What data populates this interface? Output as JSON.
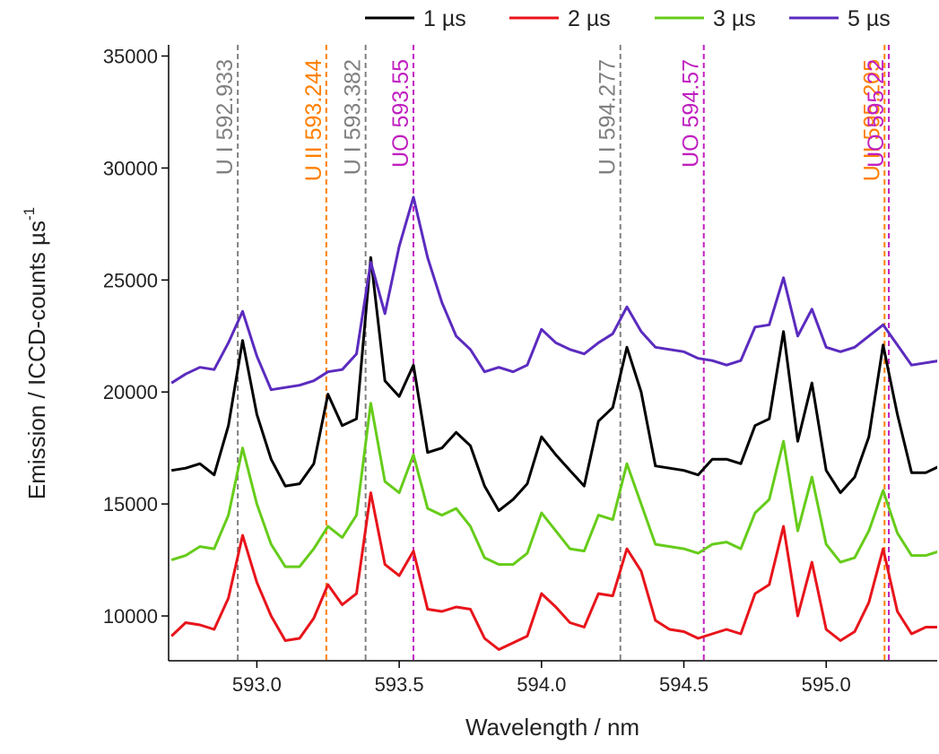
{
  "chart_data": {
    "type": "line",
    "xlabel": "Wavelength / nm",
    "ylabel": {
      "text": "Emission / ICCD-counts µs",
      "superscript": "-1"
    },
    "xlim": [
      592.69,
      595.39
    ],
    "ylim": [
      8000,
      35500
    ],
    "xticks": [
      {
        "value": 593,
        "label": "593.0"
      },
      {
        "value": 593.5,
        "label": "593.5"
      },
      {
        "value": 594,
        "label": "594.0"
      },
      {
        "value": 594.5,
        "label": "594.5"
      },
      {
        "value": 595,
        "label": "595.0"
      }
    ],
    "yticks": [
      10000,
      15000,
      20000,
      25000,
      30000,
      35000
    ],
    "x": [
      592.7,
      592.75,
      592.8,
      592.85,
      592.9,
      592.95,
      593.0,
      593.05,
      593.1,
      593.15,
      593.2,
      593.25,
      593.3,
      593.35,
      593.4,
      593.45,
      593.5,
      593.55,
      593.6,
      593.65,
      593.7,
      593.75,
      593.8,
      593.85,
      593.9,
      593.95,
      594.0,
      594.05,
      594.1,
      594.15,
      594.2,
      594.25,
      594.3,
      594.35,
      594.4,
      594.45,
      594.5,
      594.55,
      594.6,
      594.65,
      594.7,
      594.75,
      594.8,
      594.85,
      594.9,
      594.95,
      595.0,
      595.05,
      595.1,
      595.15,
      595.2,
      595.25,
      595.3,
      595.35,
      595.4
    ],
    "series": [
      {
        "name": "1 µs",
        "color": "#000000",
        "values": [
          16500,
          16600,
          16800,
          16300,
          18500,
          22300,
          19000,
          17000,
          15800,
          15900,
          16800,
          19900,
          18500,
          18800,
          26000,
          20500,
          19800,
          21200,
          17300,
          17500,
          18200,
          17600,
          15800,
          14700,
          15200,
          15900,
          18000,
          17200,
          16500,
          15800,
          18700,
          19300,
          22000,
          20000,
          16700,
          16600,
          16500,
          16300,
          17000,
          17000,
          16800,
          18500,
          18800,
          22700,
          17800,
          20400,
          16500,
          15500,
          16200,
          18000,
          22100,
          19000,
          16400,
          16400,
          16700
        ]
      },
      {
        "name": "2 µs",
        "color": "#e8141b",
        "values": [
          9100,
          9700,
          9600,
          9400,
          10800,
          13600,
          11500,
          10000,
          8900,
          9000,
          9900,
          11400,
          10500,
          11000,
          15500,
          12300,
          11800,
          12900,
          10300,
          10200,
          10400,
          10300,
          9000,
          8500,
          8800,
          9100,
          11000,
          10400,
          9700,
          9500,
          11000,
          10900,
          13000,
          12000,
          9800,
          9400,
          9300,
          9000,
          9200,
          9400,
          9200,
          11000,
          11400,
          14000,
          10000,
          12400,
          9400,
          8900,
          9300,
          10600,
          13000,
          10200,
          9200,
          9500,
          9500
        ]
      },
      {
        "name": "3 µs",
        "color": "#66cc1a",
        "values": [
          12500,
          12700,
          13100,
          13000,
          14500,
          17500,
          15000,
          13200,
          12200,
          12200,
          13000,
          14000,
          13500,
          14500,
          19500,
          16000,
          15500,
          17200,
          14800,
          14500,
          14800,
          14000,
          12600,
          12300,
          12300,
          12800,
          14600,
          13800,
          13000,
          12900,
          14500,
          14300,
          16800,
          15000,
          13200,
          13100,
          13000,
          12800,
          13200,
          13300,
          13000,
          14600,
          15200,
          17800,
          13800,
          16200,
          13200,
          12400,
          12600,
          13800,
          15600,
          13700,
          12700,
          12700,
          12900
        ]
      },
      {
        "name": "5 µs",
        "color": "#5b2bbf",
        "values": [
          20400,
          20800,
          21100,
          21000,
          22200,
          23600,
          21600,
          20100,
          20200,
          20300,
          20500,
          20900,
          21000,
          21700,
          25800,
          23500,
          26500,
          28700,
          26000,
          24000,
          22500,
          21900,
          20900,
          21100,
          20900,
          21200,
          22800,
          22200,
          21900,
          21700,
          22200,
          22600,
          23800,
          22700,
          22000,
          21900,
          21800,
          21500,
          21400,
          21200,
          21400,
          22900,
          23000,
          25100,
          22500,
          23700,
          22000,
          21800,
          22000,
          22500,
          23000,
          22100,
          21200,
          21300,
          21400
        ]
      }
    ],
    "annotations": [
      {
        "label": "U I 592.933",
        "x": 592.933,
        "color": "#808080"
      },
      {
        "label": "U II 593.244",
        "x": 593.244,
        "color": "#ff8000"
      },
      {
        "label": "U I 593.382",
        "x": 593.382,
        "color": "#808080"
      },
      {
        "label": "UO 593.55",
        "x": 593.55,
        "color": "#c020c0"
      },
      {
        "label": "U I 594.277",
        "x": 594.277,
        "color": "#808080"
      },
      {
        "label": "UO 594.57",
        "x": 594.57,
        "color": "#c020c0"
      },
      {
        "label": "U II 595.205",
        "x": 595.205,
        "color": "#ff8000"
      },
      {
        "label": "UO 595.22",
        "x": 595.22,
        "color": "#c020c0"
      }
    ],
    "legend": "top"
  }
}
